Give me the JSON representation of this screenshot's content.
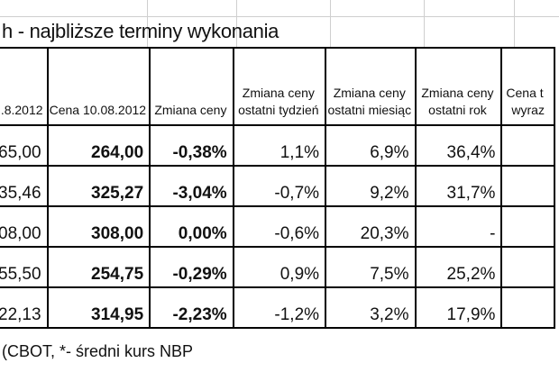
{
  "title": "h - najbliższe terminy wykonania",
  "headers": {
    "col0": ".8.2012",
    "col1": "Cena 10.08.2012",
    "col2": "Zmiana ceny",
    "col3_line1": "Zmiana ceny",
    "col3_line2": "ostatni tydzień",
    "col4_line1": "Zmiana ceny",
    "col4_line2": "ostatni miesiąc",
    "col5_line1": "Zmiana ceny",
    "col5_line2": "ostatni rok",
    "col6_line1": "Cena t",
    "col6_line2": "wyraz"
  },
  "rows": [
    {
      "prev": "65,00",
      "price": "264,00",
      "change": "-0,38%",
      "week": "1,1%",
      "month": "6,9%",
      "year": "36,4%"
    },
    {
      "prev": "35,46",
      "price": "325,27",
      "change": "-3,04%",
      "week": "-0,7%",
      "month": "9,2%",
      "year": "31,7%"
    },
    {
      "prev": "08,00",
      "price": "308,00",
      "change": "0,00%",
      "week": "-0,6%",
      "month": "20,3%",
      "year": "-"
    },
    {
      "prev": "55,50",
      "price": "254,75",
      "change": "-0,29%",
      "week": "0,9%",
      "month": "7,5%",
      "year": "25,2%"
    },
    {
      "prev": "22,13",
      "price": "314,95",
      "change": "-2,23%",
      "week": "-1,2%",
      "month": "3,2%",
      "year": "17,9%"
    }
  ],
  "footer": "(CBOT, *- średni kurs NBP"
}
